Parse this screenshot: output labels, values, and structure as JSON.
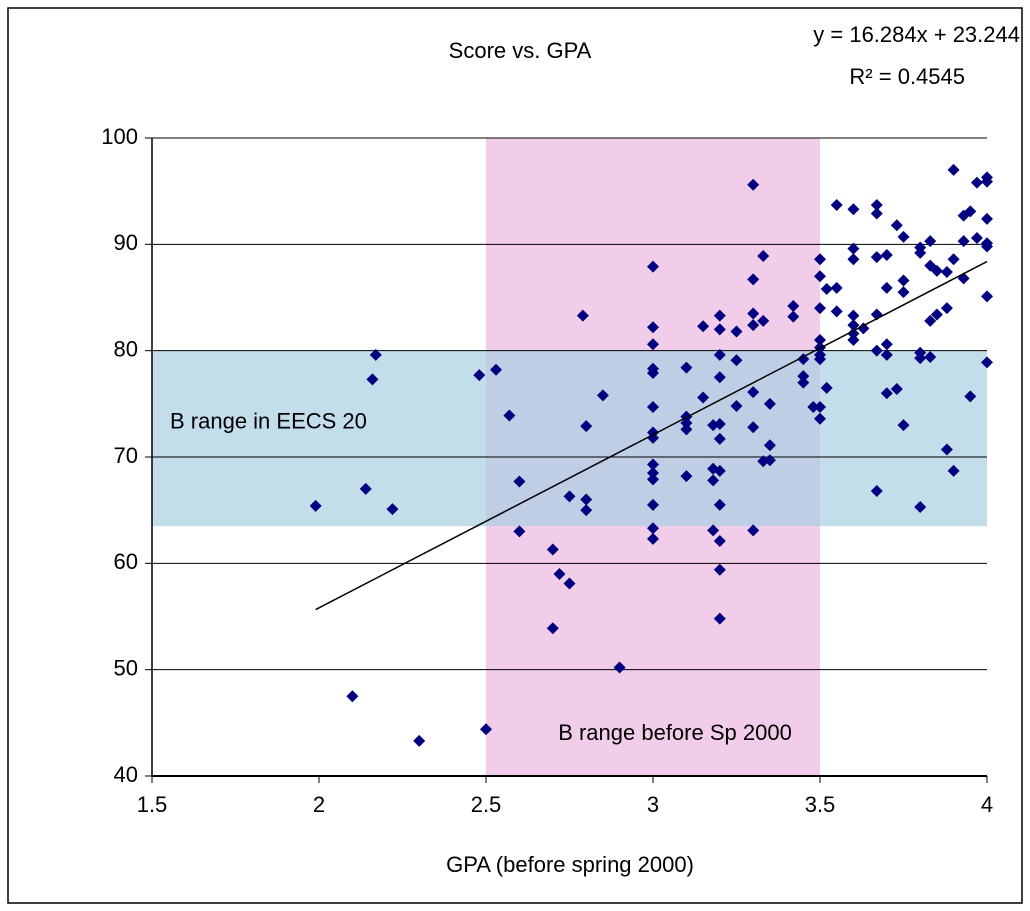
{
  "chart_data": {
    "type": "scatter",
    "title": "Score vs. GPA",
    "x_label": "GPA (before spring 2000)",
    "color": "#000080",
    "grid": true,
    "xlim": [
      1.5,
      4
    ],
    "xticks": [
      1.5,
      2,
      2.5,
      3,
      3.5,
      4
    ],
    "ylim": [
      40,
      100
    ],
    "yticks": [
      40,
      50,
      60,
      70,
      80,
      90,
      100
    ],
    "bands": [
      {
        "label": "B range in EECS 20",
        "ylim": [
          63.5,
          80
        ],
        "color": "#a9cfe2"
      },
      {
        "label": "B range before Sp 2000",
        "xlim": [
          2.5,
          3.5
        ],
        "color": "#f1cde9"
      }
    ],
    "trendline": {
      "label": "y = 16.284x + 23.244",
      "r2_label": "R² = 0.4545",
      "x": [
        1.99,
        4
      ],
      "values": [
        55.65,
        88.38
      ]
    },
    "x": [
      1.99,
      2.1,
      2.3,
      2.14,
      2.16,
      2.17,
      2.22,
      2.48,
      2.5,
      2.53,
      2.57,
      2.6,
      2.6,
      2.7,
      2.7,
      2.72,
      2.75,
      2.75,
      2.79,
      2.8,
      2.8,
      2.8,
      2.85,
      2.9,
      3,
      3,
      3,
      3,
      3,
      3,
      3,
      3,
      3,
      3,
      3,
      3,
      3,
      3,
      3.1,
      3.1,
      3.1,
      3.1,
      3.1,
      3.15,
      3.15,
      3.2,
      3.2,
      3.2,
      3.2,
      3.2,
      3.2,
      3.2,
      3.2,
      3.2,
      3.2,
      3.2,
      3.18,
      3.18,
      3.18,
      3.18,
      3.25,
      3.25,
      3.25,
      3.3,
      3.3,
      3.3,
      3.3,
      3.3,
      3.3,
      3.3,
      3.33,
      3.33,
      3.33,
      3.35,
      3.35,
      3.35,
      3.42,
      3.42,
      3.45,
      3.45,
      3.45,
      3.48,
      3.5,
      3.5,
      3.5,
      3.5,
      3.5,
      3.5,
      3.5,
      3.5,
      3.5,
      3.52,
      3.52,
      3.55,
      3.55,
      3.55,
      3.6,
      3.6,
      3.6,
      3.6,
      3.6,
      3.6,
      3.6,
      3.63,
      3.67,
      3.67,
      3.67,
      3.67,
      3.67,
      3.67,
      3.7,
      3.7,
      3.7,
      3.7,
      3.7,
      3.73,
      3.73,
      3.75,
      3.75,
      3.75,
      3.75,
      3.8,
      3.8,
      3.8,
      3.8,
      3.8,
      3.83,
      3.83,
      3.83,
      3.83,
      3.85,
      3.85,
      3.88,
      3.88,
      3.88,
      3.9,
      3.9,
      3.9,
      3.93,
      3.93,
      3.93,
      3.95,
      3.95,
      3.97,
      3.97,
      4,
      4,
      4,
      4,
      4,
      4,
      4
    ],
    "values": [
      65.4,
      47.5,
      43.3,
      67.0,
      77.3,
      79.6,
      65.1,
      77.7,
      44.4,
      78.2,
      73.9,
      67.7,
      63.0,
      61.3,
      53.9,
      59.0,
      58.1,
      66.3,
      83.3,
      72.9,
      66.0,
      65.0,
      75.8,
      50.2,
      87.9,
      82.2,
      80.6,
      78.3,
      77.9,
      74.7,
      72.3,
      71.8,
      69.3,
      68.5,
      67.9,
      65.5,
      63.3,
      62.3,
      78.4,
      73.8,
      73.2,
      72.6,
      68.2,
      82.3,
      75.6,
      83.3,
      82.0,
      79.6,
      77.5,
      73.1,
      71.7,
      68.7,
      65.5,
      62.1,
      59.4,
      54.8,
      73.0,
      68.9,
      67.8,
      63.1,
      81.8,
      79.1,
      74.8,
      95.6,
      86.7,
      83.5,
      82.4,
      76.1,
      72.8,
      63.1,
      88.9,
      82.8,
      69.6,
      75.0,
      71.1,
      69.7,
      84.2,
      83.2,
      79.2,
      77.6,
      77.0,
      74.7,
      88.6,
      87.0,
      84.0,
      81.0,
      80.3,
      79.6,
      79.2,
      74.7,
      73.6,
      76.5,
      85.8,
      93.7,
      83.7,
      85.9,
      93.3,
      89.6,
      88.6,
      83.3,
      82.4,
      81.6,
      81.0,
      82.1,
      93.7,
      92.9,
      88.8,
      83.4,
      80.0,
      66.8,
      89.0,
      85.9,
      80.6,
      79.6,
      76.0,
      91.8,
      76.4,
      90.7,
      86.6,
      85.5,
      73.0,
      89.7,
      89.2,
      79.8,
      79.3,
      65.3,
      90.3,
      88.0,
      82.8,
      79.4,
      87.5,
      83.4,
      87.4,
      70.7,
      84.0,
      97.0,
      88.6,
      68.7,
      92.7,
      90.3,
      86.8,
      93.1,
      75.7,
      90.6,
      95.8,
      96.3,
      95.9,
      92.4,
      90.1,
      89.8,
      85.1,
      78.9
    ]
  }
}
